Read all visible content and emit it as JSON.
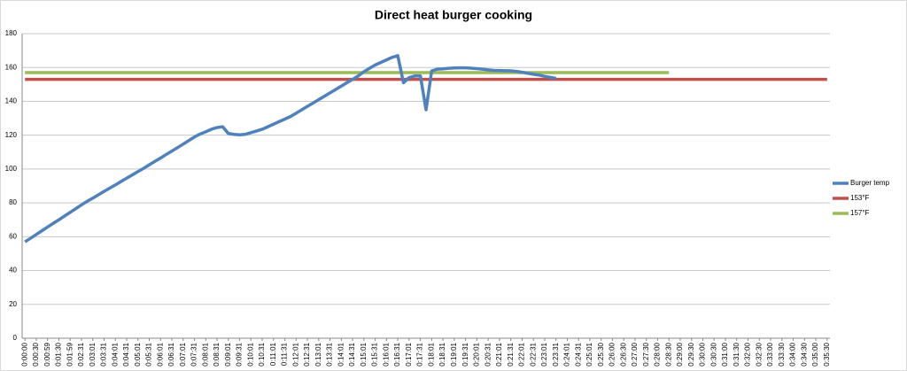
{
  "chart_data": {
    "type": "line",
    "title": "Direct heat burger cooking",
    "categories": [
      "0:00:00",
      null,
      "0:00:30",
      null,
      "0:00:59",
      null,
      "0:01:30",
      null,
      "0:01:59",
      null,
      "0:02:31",
      null,
      "0:03:01",
      null,
      "0:03:31",
      null,
      "0:04:01",
      null,
      "0:04:31",
      null,
      "0:05:01",
      null,
      "0:05:31",
      null,
      "0:06:01",
      null,
      "0:06:31",
      null,
      "0:07:01",
      null,
      "0:07:31",
      null,
      "0:08:01",
      null,
      "0:08:31",
      null,
      "0:09:01",
      null,
      "0:09:31",
      null,
      "0:10:01",
      null,
      "0:10:31",
      null,
      "0:11:01",
      null,
      "0:11:31",
      null,
      "0:12:01",
      null,
      "0:12:31",
      null,
      "0:13:01",
      null,
      "0:13:31",
      null,
      "0:14:01",
      null,
      "0:14:31",
      null,
      "0:15:01",
      null,
      "0:15:31",
      null,
      "0:16:01",
      null,
      "0:16:31",
      null,
      "0:17:01",
      null,
      "0:17:31",
      null,
      "0:18:01",
      null,
      "0:18:31",
      null,
      "0:19:01",
      null,
      "0:19:31",
      null,
      "0:20:01",
      null,
      "0:20:31",
      null,
      "0:21:01",
      null,
      "0:21:31",
      null,
      "0:22:01",
      null,
      "0:22:31",
      null,
      "0:23:01",
      null,
      "0:23:31",
      null,
      "0:24:01",
      null,
      "0:24:31",
      null,
      "0:25:01",
      null,
      "0:25:30",
      null,
      "0:26:00",
      null,
      "0:26:30",
      null,
      "0:27:00",
      null,
      "0:27:30",
      null,
      "0:28:00",
      null,
      "0:28:30",
      null,
      "0:29:00",
      null,
      "0:29:30",
      null,
      "0:30:00",
      null,
      "0:30:30",
      null,
      "0:31:00",
      null,
      "0:31:30",
      null,
      "0:32:00",
      null,
      "0:32:30",
      null,
      "0:33:00",
      null,
      "0:33:30",
      null,
      "0:34:00",
      null,
      "0:34:30",
      null,
      "0:35:00",
      null,
      "0:35:30"
    ],
    "series": [
      {
        "name": "Burger temp",
        "color": "#4f81bd",
        "values": [
          57,
          59.1,
          61.3,
          63.5,
          65.7,
          67.9,
          70,
          72.2,
          74.4,
          76.6,
          78.8,
          80.9,
          82.8,
          84.8,
          86.8,
          88.7,
          90.6,
          92.6,
          94.6,
          96.5,
          98.5,
          100.4,
          102.5,
          104.5,
          106.5,
          108.6,
          110.6,
          112.6,
          114.7,
          116.8,
          118.9,
          120.7,
          122,
          123.5,
          124.5,
          125,
          121,
          120.5,
          120.2,
          120.5,
          121.5,
          122.5,
          123.5,
          125,
          126.5,
          128,
          129.5,
          131,
          133,
          135,
          137,
          139,
          141,
          143,
          145,
          147,
          149,
          151,
          153,
          155,
          157.5,
          159.5,
          161.5,
          163,
          164.5,
          166,
          167,
          151,
          154,
          155,
          155,
          135,
          158,
          159,
          159.2,
          159.5,
          159.7,
          159.8,
          159.8,
          159.6,
          159.3,
          159,
          158.6,
          158.3,
          158.2,
          158.1,
          158,
          157.7,
          157.2,
          156.6,
          156,
          155.5,
          154.8,
          154.2,
          153.5,
          null,
          null,
          null,
          null,
          null,
          null,
          null,
          null,
          null,
          null,
          null,
          null,
          null,
          null,
          null,
          null,
          null,
          null,
          null,
          null,
          null,
          null,
          null,
          null,
          null,
          null,
          null,
          null,
          null,
          null,
          null,
          null,
          null,
          null,
          null,
          null,
          null,
          null,
          null,
          null,
          null,
          null,
          null,
          null,
          null,
          null,
          null,
          null
        ]
      },
      {
        "name": "153°F",
        "color": "#c0504d",
        "values": [
          153,
          153,
          153,
          153,
          153,
          153,
          153,
          153,
          153,
          153,
          153,
          153,
          153,
          153,
          153,
          153,
          153,
          153,
          153,
          153,
          153,
          153,
          153,
          153,
          153,
          153,
          153,
          153,
          153,
          153,
          153,
          153,
          153,
          153,
          153,
          153,
          153,
          153,
          153,
          153,
          153,
          153,
          153,
          153,
          153,
          153,
          153,
          153,
          153,
          153,
          153,
          153,
          153,
          153,
          153,
          153,
          153,
          153,
          153,
          153,
          153,
          153,
          153,
          153,
          153,
          153,
          153,
          153,
          153,
          153,
          153,
          153,
          153,
          153,
          153,
          153,
          153,
          153,
          153,
          153,
          153,
          153,
          153,
          153,
          153,
          153,
          153,
          153,
          153,
          153,
          153,
          153,
          153,
          153,
          153,
          153,
          153,
          153,
          153,
          153,
          153,
          153,
          153,
          153,
          153,
          153,
          153,
          153,
          153,
          153,
          153,
          153,
          153,
          153,
          153,
          153,
          153,
          153,
          153,
          153,
          153,
          153,
          153,
          153,
          153,
          153,
          153,
          153,
          153,
          153,
          153,
          153,
          153,
          153,
          153,
          153,
          153,
          153,
          153,
          153,
          153,
          153,
          153
        ]
      },
      {
        "name": "157°F",
        "color": "#9bbb59",
        "values": [
          157,
          157,
          157,
          157,
          157,
          157,
          157,
          157,
          157,
          157,
          157,
          157,
          157,
          157,
          157,
          157,
          157,
          157,
          157,
          157,
          157,
          157,
          157,
          157,
          157,
          157,
          157,
          157,
          157,
          157,
          157,
          157,
          157,
          157,
          157,
          157,
          157,
          157,
          157,
          157,
          157,
          157,
          157,
          157,
          157,
          157,
          157,
          157,
          157,
          157,
          157,
          157,
          157,
          157,
          157,
          157,
          157,
          157,
          157,
          157,
          157,
          157,
          157,
          157,
          157,
          157,
          157,
          157,
          157,
          157,
          157,
          157,
          157,
          157,
          157,
          157,
          157,
          157,
          157,
          157,
          157,
          157,
          157,
          157,
          157,
          157,
          157,
          157,
          157,
          157,
          157,
          157,
          157,
          157,
          157,
          157,
          157,
          157,
          157,
          157,
          157,
          157,
          157,
          157,
          157,
          157,
          157,
          157,
          157,
          157,
          157,
          157,
          157,
          157,
          157,
          null,
          null,
          null,
          null,
          null,
          null,
          null,
          null,
          null,
          null,
          null,
          null,
          null,
          null,
          null,
          null,
          null,
          null,
          null,
          null,
          null,
          null,
          null,
          null,
          null,
          null,
          null,
          null
        ]
      }
    ],
    "ylim": [
      0,
      180
    ],
    "yticks": [
      0,
      20,
      40,
      60,
      80,
      100,
      120,
      140,
      160,
      180
    ],
    "grid": true,
    "legend": "right"
  }
}
